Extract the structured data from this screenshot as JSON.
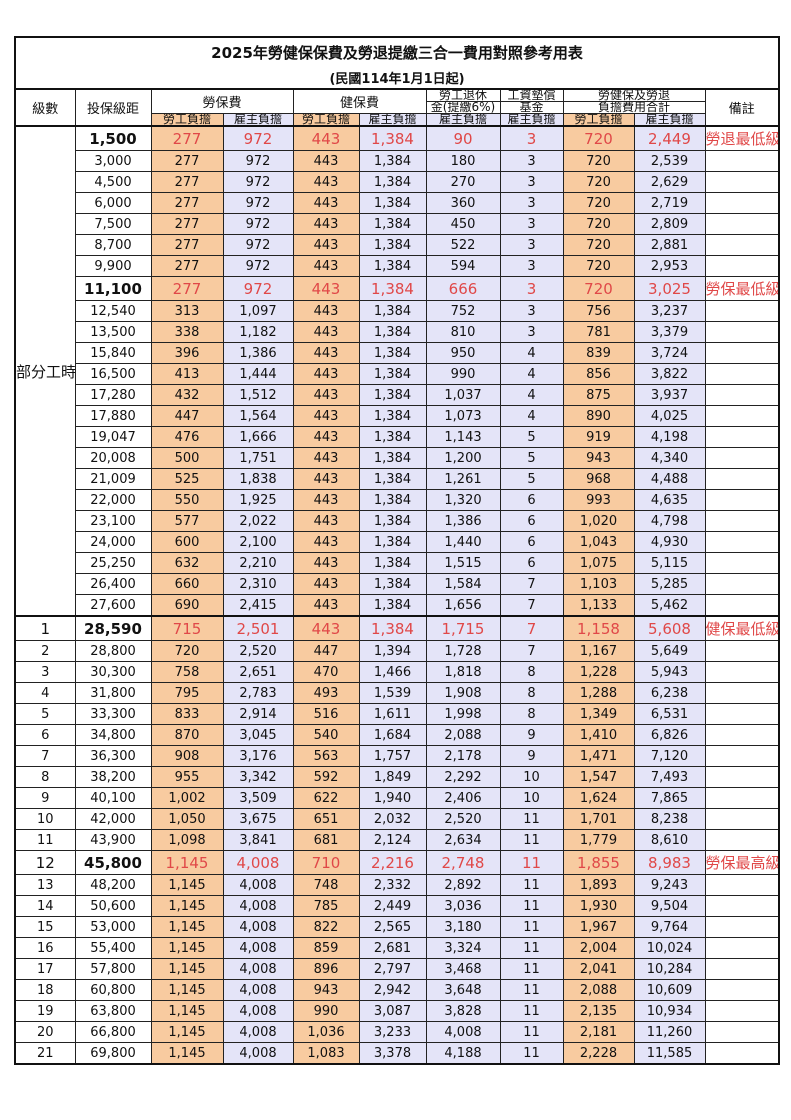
{
  "title": "2025年勞健保保費及勞退提繳三合一費用對照參考用表",
  "subtitle": "(民國114年1月1日起)",
  "headers": {
    "grade": "級數",
    "salary": "投保級距",
    "labor": "勞保費",
    "health": "健保費",
    "pension_1": "勞工退休",
    "pension_2": "金(提繳6%)",
    "wage_1": "工資墊償",
    "wage_2": "基金",
    "total_1": "勞健保及勞退",
    "total_2": "負擔費用合計",
    "note": "備註",
    "worker": "勞工負擔",
    "employer": "雇主負擔"
  },
  "part_time_label": "部分工時",
  "colors": {
    "worker_bg": "#f8cba0",
    "employer_bg": "#e4e4f8",
    "highlight_text": "#e04848"
  },
  "part_time_rows": [
    {
      "salary": "1,500",
      "v": [
        "277",
        "972",
        "443",
        "1,384",
        "90",
        "3",
        "720",
        "2,449"
      ],
      "note": "勞退最低級距"
    },
    {
      "salary": "3,000",
      "v": [
        "277",
        "972",
        "443",
        "1,384",
        "180",
        "3",
        "720",
        "2,539"
      ]
    },
    {
      "salary": "4,500",
      "v": [
        "277",
        "972",
        "443",
        "1,384",
        "270",
        "3",
        "720",
        "2,629"
      ]
    },
    {
      "salary": "6,000",
      "v": [
        "277",
        "972",
        "443",
        "1,384",
        "360",
        "3",
        "720",
        "2,719"
      ]
    },
    {
      "salary": "7,500",
      "v": [
        "277",
        "972",
        "443",
        "1,384",
        "450",
        "3",
        "720",
        "2,809"
      ]
    },
    {
      "salary": "8,700",
      "v": [
        "277",
        "972",
        "443",
        "1,384",
        "522",
        "3",
        "720",
        "2,881"
      ]
    },
    {
      "salary": "9,900",
      "v": [
        "277",
        "972",
        "443",
        "1,384",
        "594",
        "3",
        "720",
        "2,953"
      ]
    },
    {
      "salary": "11,100",
      "v": [
        "277",
        "972",
        "443",
        "1,384",
        "666",
        "3",
        "720",
        "3,025"
      ],
      "note": "勞保最低級距"
    },
    {
      "salary": "12,540",
      "v": [
        "313",
        "1,097",
        "443",
        "1,384",
        "752",
        "3",
        "756",
        "3,237"
      ]
    },
    {
      "salary": "13,500",
      "v": [
        "338",
        "1,182",
        "443",
        "1,384",
        "810",
        "3",
        "781",
        "3,379"
      ]
    },
    {
      "salary": "15,840",
      "v": [
        "396",
        "1,386",
        "443",
        "1,384",
        "950",
        "4",
        "839",
        "3,724"
      ]
    },
    {
      "salary": "16,500",
      "v": [
        "413",
        "1,444",
        "443",
        "1,384",
        "990",
        "4",
        "856",
        "3,822"
      ]
    },
    {
      "salary": "17,280",
      "v": [
        "432",
        "1,512",
        "443",
        "1,384",
        "1,037",
        "4",
        "875",
        "3,937"
      ]
    },
    {
      "salary": "17,880",
      "v": [
        "447",
        "1,564",
        "443",
        "1,384",
        "1,073",
        "4",
        "890",
        "4,025"
      ]
    },
    {
      "salary": "19,047",
      "v": [
        "476",
        "1,666",
        "443",
        "1,384",
        "1,143",
        "5",
        "919",
        "4,198"
      ]
    },
    {
      "salary": "20,008",
      "v": [
        "500",
        "1,751",
        "443",
        "1,384",
        "1,200",
        "5",
        "943",
        "4,340"
      ]
    },
    {
      "salary": "21,009",
      "v": [
        "525",
        "1,838",
        "443",
        "1,384",
        "1,261",
        "5",
        "968",
        "4,488"
      ]
    },
    {
      "salary": "22,000",
      "v": [
        "550",
        "1,925",
        "443",
        "1,384",
        "1,320",
        "6",
        "993",
        "4,635"
      ]
    },
    {
      "salary": "23,100",
      "v": [
        "577",
        "2,022",
        "443",
        "1,384",
        "1,386",
        "6",
        "1,020",
        "4,798"
      ]
    },
    {
      "salary": "24,000",
      "v": [
        "600",
        "2,100",
        "443",
        "1,384",
        "1,440",
        "6",
        "1,043",
        "4,930"
      ]
    },
    {
      "salary": "25,250",
      "v": [
        "632",
        "2,210",
        "443",
        "1,384",
        "1,515",
        "6",
        "1,075",
        "5,115"
      ]
    },
    {
      "salary": "26,400",
      "v": [
        "660",
        "2,310",
        "443",
        "1,384",
        "1,584",
        "7",
        "1,103",
        "5,285"
      ]
    },
    {
      "salary": "27,600",
      "v": [
        "690",
        "2,415",
        "443",
        "1,384",
        "1,656",
        "7",
        "1,133",
        "5,462"
      ]
    }
  ],
  "grade_rows": [
    {
      "grade": "1",
      "salary": "28,590",
      "v": [
        "715",
        "2,501",
        "443",
        "1,384",
        "1,715",
        "7",
        "1,158",
        "5,608"
      ],
      "note": "健保最低級距"
    },
    {
      "grade": "2",
      "salary": "28,800",
      "v": [
        "720",
        "2,520",
        "447",
        "1,394",
        "1,728",
        "7",
        "1,167",
        "5,649"
      ]
    },
    {
      "grade": "3",
      "salary": "30,300",
      "v": [
        "758",
        "2,651",
        "470",
        "1,466",
        "1,818",
        "8",
        "1,228",
        "5,943"
      ]
    },
    {
      "grade": "4",
      "salary": "31,800",
      "v": [
        "795",
        "2,783",
        "493",
        "1,539",
        "1,908",
        "8",
        "1,288",
        "6,238"
      ]
    },
    {
      "grade": "5",
      "salary": "33,300",
      "v": [
        "833",
        "2,914",
        "516",
        "1,611",
        "1,998",
        "8",
        "1,349",
        "6,531"
      ]
    },
    {
      "grade": "6",
      "salary": "34,800",
      "v": [
        "870",
        "3,045",
        "540",
        "1,684",
        "2,088",
        "9",
        "1,410",
        "6,826"
      ]
    },
    {
      "grade": "7",
      "salary": "36,300",
      "v": [
        "908",
        "3,176",
        "563",
        "1,757",
        "2,178",
        "9",
        "1,471",
        "7,120"
      ]
    },
    {
      "grade": "8",
      "salary": "38,200",
      "v": [
        "955",
        "3,342",
        "592",
        "1,849",
        "2,292",
        "10",
        "1,547",
        "7,493"
      ]
    },
    {
      "grade": "9",
      "salary": "40,100",
      "v": [
        "1,002",
        "3,509",
        "622",
        "1,940",
        "2,406",
        "10",
        "1,624",
        "7,865"
      ]
    },
    {
      "grade": "10",
      "salary": "42,000",
      "v": [
        "1,050",
        "3,675",
        "651",
        "2,032",
        "2,520",
        "11",
        "1,701",
        "8,238"
      ]
    },
    {
      "grade": "11",
      "salary": "43,900",
      "v": [
        "1,098",
        "3,841",
        "681",
        "2,124",
        "2,634",
        "11",
        "1,779",
        "8,610"
      ]
    },
    {
      "grade": "12",
      "salary": "45,800",
      "v": [
        "1,145",
        "4,008",
        "710",
        "2,216",
        "2,748",
        "11",
        "1,855",
        "8,983"
      ],
      "note": "勞保最高級距"
    },
    {
      "grade": "13",
      "salary": "48,200",
      "v": [
        "1,145",
        "4,008",
        "748",
        "2,332",
        "2,892",
        "11",
        "1,893",
        "9,243"
      ]
    },
    {
      "grade": "14",
      "salary": "50,600",
      "v": [
        "1,145",
        "4,008",
        "785",
        "2,449",
        "3,036",
        "11",
        "1,930",
        "9,504"
      ]
    },
    {
      "grade": "15",
      "salary": "53,000",
      "v": [
        "1,145",
        "4,008",
        "822",
        "2,565",
        "3,180",
        "11",
        "1,967",
        "9,764"
      ]
    },
    {
      "grade": "16",
      "salary": "55,400",
      "v": [
        "1,145",
        "4,008",
        "859",
        "2,681",
        "3,324",
        "11",
        "2,004",
        "10,024"
      ]
    },
    {
      "grade": "17",
      "salary": "57,800",
      "v": [
        "1,145",
        "4,008",
        "896",
        "2,797",
        "3,468",
        "11",
        "2,041",
        "10,284"
      ]
    },
    {
      "grade": "18",
      "salary": "60,800",
      "v": [
        "1,145",
        "4,008",
        "943",
        "2,942",
        "3,648",
        "11",
        "2,088",
        "10,609"
      ]
    },
    {
      "grade": "19",
      "salary": "63,800",
      "v": [
        "1,145",
        "4,008",
        "990",
        "3,087",
        "3,828",
        "11",
        "2,135",
        "10,934"
      ]
    },
    {
      "grade": "20",
      "salary": "66,800",
      "v": [
        "1,145",
        "4,008",
        "1,036",
        "3,233",
        "4,008",
        "11",
        "2,181",
        "11,260"
      ]
    },
    {
      "grade": "21",
      "salary": "69,800",
      "v": [
        "1,145",
        "4,008",
        "1,083",
        "3,378",
        "4,188",
        "11",
        "2,228",
        "11,585"
      ]
    }
  ]
}
